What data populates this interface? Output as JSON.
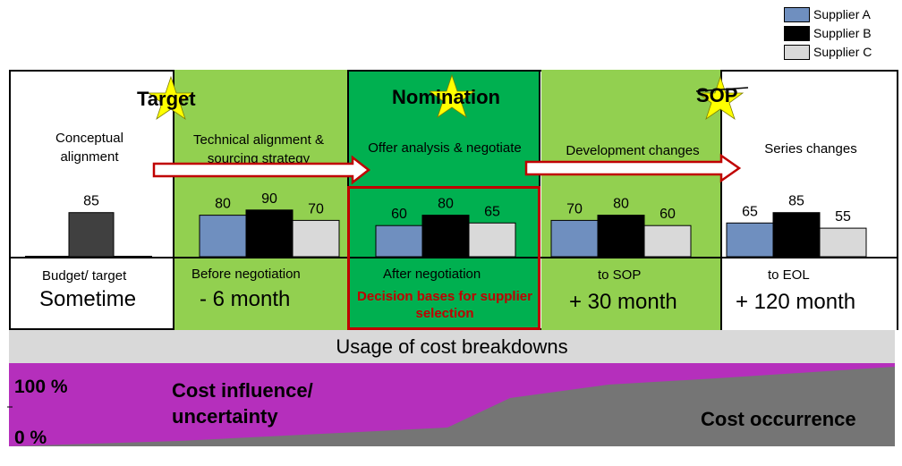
{
  "legend": [
    {
      "label": "Supplier A",
      "color": "#6f8fbf"
    },
    {
      "label": "Supplier B",
      "color": "#000000"
    },
    {
      "label": "Supplier C",
      "color": "#d9d9d9"
    }
  ],
  "phases": [
    {
      "title": "",
      "subtitle": "Conceptual alignment",
      "bottom_small": "Budget/ target",
      "bottom_big": "Sometime"
    },
    {
      "title": "Target",
      "subtitle": "Technical alignment & sourcing strategy",
      "bottom_small": "Before negotiation",
      "bottom_big": "- 6 month"
    },
    {
      "title": "Nomination",
      "subtitle": "Offer analysis & negotiate",
      "bottom_small": "After negotiation",
      "bottom_note": "Decision bases for supplier selection"
    },
    {
      "title": "SOP",
      "subtitle": "Development changes",
      "bottom_small": "to SOP",
      "bottom_big": "+ 30 month"
    },
    {
      "title": "",
      "subtitle": "Series changes",
      "bottom_small": "to EOL",
      "bottom_big": "+ 120 month"
    }
  ],
  "chart_data": {
    "type": "bar",
    "categories": [
      "Conceptual alignment",
      "Technical alignment & sourcing strategy",
      "Offer analysis & negotiate",
      "Development changes",
      "Series changes"
    ],
    "series": [
      {
        "name": "Supplier A",
        "color": "#6f8fbf",
        "values": [
          null,
          80,
          60,
          70,
          65
        ]
      },
      {
        "name": "Supplier B",
        "color": "#000000",
        "values": [
          null,
          90,
          80,
          80,
          85
        ]
      },
      {
        "name": "Supplier C",
        "color": "#d9d9d9",
        "values": [
          null,
          70,
          65,
          60,
          55
        ]
      }
    ],
    "budget": {
      "value": 85,
      "color": "#404040"
    }
  },
  "usage_bar": "Usage of cost breakdowns",
  "influence": {
    "top_label": "100 %",
    "bottom_label": "0 %",
    "influence_label": "Cost influence/ uncertainty",
    "occurrence_label": "Cost occurrence",
    "influence_color": "#b52fbc",
    "occurrence_color": "#757575"
  },
  "colors": {
    "light_green": "#92d050",
    "dark_green": "#00b050",
    "red": "#c00000",
    "star": "#ffff00"
  }
}
